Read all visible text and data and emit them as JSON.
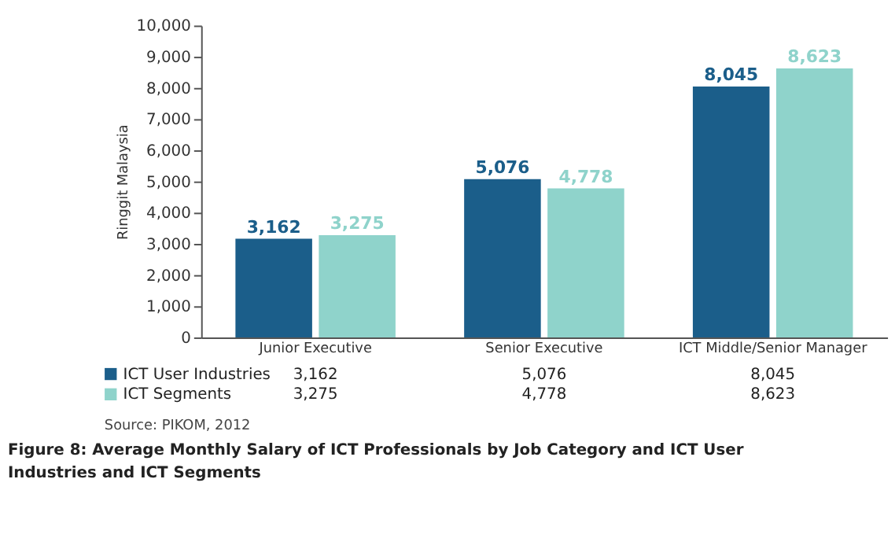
{
  "chart_data": {
    "type": "bar",
    "title": "Figure 8: Average Monthly Salary of ICT Professionals by Job Category and ICT User Industries and ICT Segments",
    "ylabel": "Ringgit Malaysia",
    "categories": [
      "Junior Executive",
      "Senior Executive",
      "ICT Middle/Senior Manager"
    ],
    "series": [
      {
        "name": "ICT User Industries",
        "color": "#1b5e8a",
        "values": [
          3162,
          5076,
          8045
        ],
        "value_labels": [
          "3,162",
          "5,076",
          "8,045"
        ]
      },
      {
        "name": "ICT Segments",
        "color": "#8fd3cb",
        "values": [
          3275,
          4778,
          8623
        ],
        "value_labels": [
          "3,275",
          "4,778",
          "8,623"
        ]
      }
    ],
    "ylim": [
      0,
      10000
    ],
    "yticks": [
      0,
      {
        "value": 1000,
        "label": "1,000"
      },
      {
        "value": 2000,
        "label": "2,000"
      },
      {
        "value": 3000,
        "label": "3,000"
      },
      {
        "value": 4000,
        "label": "4,000"
      },
      {
        "value": 5000,
        "label": "5,000"
      },
      {
        "value": 6000,
        "label": "6,000"
      },
      {
        "value": 7000,
        "label": "7,000"
      },
      {
        "value": 8000,
        "label": "8,000"
      },
      {
        "value": 9000,
        "label": "9,000"
      },
      {
        "value": 10000,
        "label": "10,000"
      }
    ],
    "legend": "bottom",
    "grid": false,
    "annotations": [
      "Source: PIKOM, 2012"
    ]
  }
}
